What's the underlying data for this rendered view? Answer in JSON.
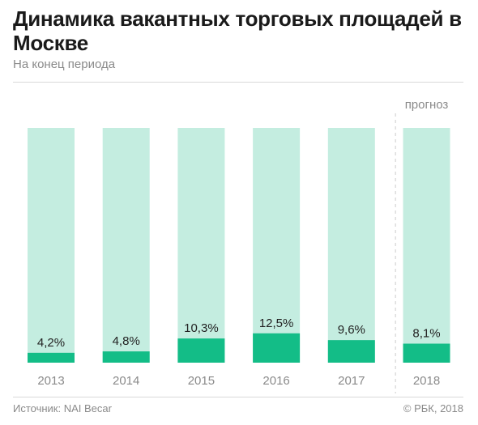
{
  "header": {
    "title": "Динамика вакантных торговых площадей в Москве",
    "subtitle": "На конец периода"
  },
  "chart_data": {
    "type": "bar",
    "categories": [
      "2013",
      "2014",
      "2015",
      "2016",
      "2017",
      "2018"
    ],
    "values": [
      4.2,
      4.8,
      10.3,
      12.5,
      9.6,
      8.1
    ],
    "value_labels": [
      "4,2%",
      "4,8%",
      "10,3%",
      "12,5%",
      "9,6%",
      "8,1%"
    ],
    "ylim": [
      0,
      100
    ],
    "unit": "%",
    "forecast_label": "прогноз",
    "forecast_from_index": 5,
    "colors": {
      "filled": "#13bd87",
      "background": "#c4ede0"
    },
    "grid": false
  },
  "footer": {
    "source": "Источник: NAI Becar",
    "copyright": "© РБК, 2018"
  }
}
